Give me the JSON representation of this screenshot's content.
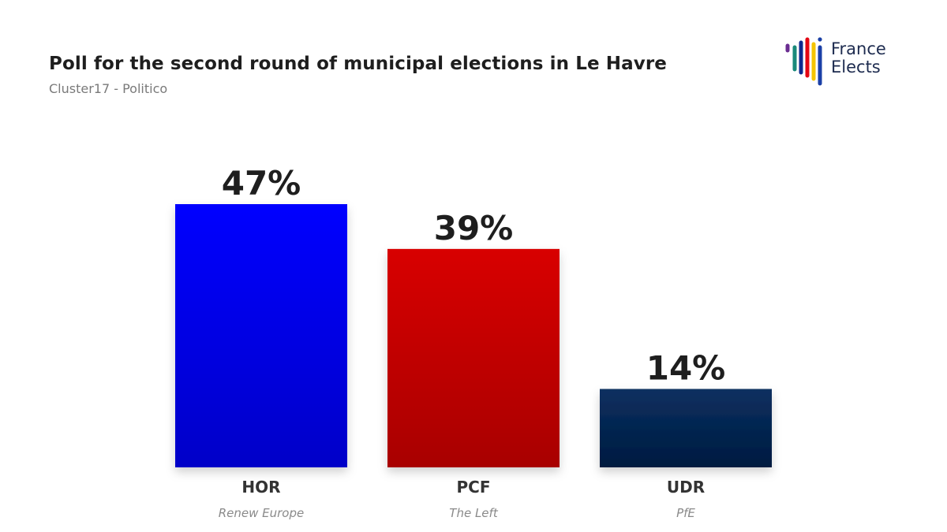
{
  "header": {
    "title": "Poll for the second round of municipal elections in Le Havre",
    "subtitle": "Cluster17 - Politico"
  },
  "logo": {
    "line1": "France",
    "line2": "Elects",
    "stripe_colors": [
      "#6a2c91",
      "#1a8a7a",
      "#0d2a8f",
      "#e30613",
      "#f4c400",
      "#1a3fa6"
    ]
  },
  "chart_data": {
    "type": "bar",
    "categories": [
      "HOR",
      "PCF",
      "UDR"
    ],
    "groups": [
      "Renew Europe",
      "The Left",
      "PfE"
    ],
    "values": [
      47,
      39,
      14
    ],
    "value_labels": [
      "47%",
      "39%",
      "14%"
    ],
    "colors": [
      {
        "top": "#0000ff",
        "bottom": "#0000c8"
      },
      {
        "top": "#d80000",
        "bottom": "#a80000"
      },
      {
        "top": "#0a3060",
        "bottom": "#001a40"
      }
    ],
    "ylim": [
      0,
      47
    ],
    "grid": false,
    "legend": "none"
  }
}
